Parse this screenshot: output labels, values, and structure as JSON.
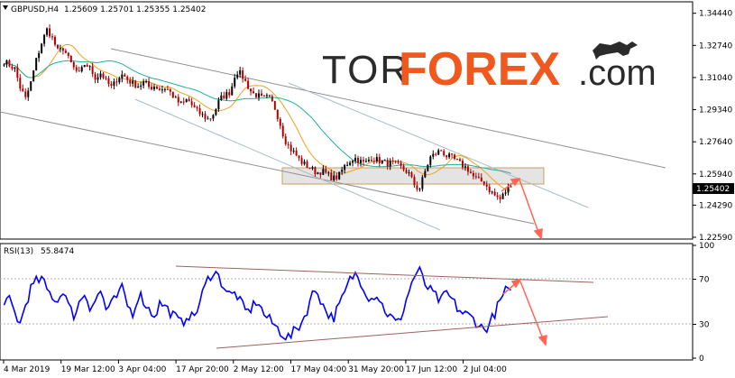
{
  "main_header": {
    "symbol": "GBPUSD,H4",
    "ohlc": "1.25609 1.25701 1.25355 1.25402"
  },
  "watermark": {
    "part1": "TOR",
    "part2": "FOREX",
    "part3": ".com",
    "logo_icon": "bull-icon",
    "colors": {
      "dark": "#2b2b2b",
      "orange": "#f0581e"
    }
  },
  "price_axis": {
    "ticks": [
      "1.34440",
      "1.32740",
      "1.31040",
      "1.29340",
      "1.27640",
      "1.25940",
      "1.24290",
      "1.22590"
    ],
    "current_price_tag": "1.25402"
  },
  "rsi_header": {
    "name": "RSI(13)",
    "value": "55.8474"
  },
  "rsi_axis": {
    "ticks": [
      "100",
      "70",
      "30",
      "0"
    ]
  },
  "time_axis": {
    "labels": [
      "4 Mar 2019",
      "19 Mar 12:00",
      "3 Apr 04:00",
      "17 Apr 20:00",
      "2 May 12:00",
      "17 May 04:00",
      "31 May 20:00",
      "17 Jun 12:00",
      "2 Jul 04:00"
    ]
  },
  "colors": {
    "bull_candle": "#000000",
    "bear_candle": "#b50000",
    "ma_fast": "#f0a020",
    "ma_slow": "#20b0a0",
    "rsi_line": "#0000ff",
    "trend_lines": "#808080",
    "support_zone": "#d8d8d8",
    "forecast_arrow": "#ff6655",
    "rsi_trend_lines": "#a06060"
  },
  "chart_data": {
    "type": "candlestick",
    "symbol": "GBPUSD",
    "timeframe": "H4",
    "ylim": [
      1.2259,
      1.3495
    ],
    "rsi_ylim": [
      0,
      100
    ],
    "rsi_levels": [
      70,
      30
    ],
    "close_path": [
      1.319,
      1.317,
      1.315,
      1.305,
      1.299,
      1.308,
      1.32,
      1.329,
      1.336,
      1.331,
      1.324,
      1.326,
      1.32,
      1.315,
      1.312,
      1.318,
      1.315,
      1.31,
      1.313,
      1.308,
      1.305,
      1.31,
      1.312,
      1.309,
      1.307,
      1.306,
      1.308,
      1.305,
      1.306,
      1.304,
      1.305,
      1.302,
      1.298,
      1.296,
      1.299,
      1.295,
      1.292,
      1.29,
      1.288,
      1.292,
      1.299,
      1.301,
      1.303,
      1.314,
      1.312,
      1.307,
      1.302,
      1.301,
      1.299,
      1.3,
      1.296,
      1.288,
      1.278,
      1.273,
      1.27,
      1.266,
      1.264,
      1.262,
      1.26,
      1.261,
      1.259,
      1.257,
      1.258,
      1.263,
      1.266,
      1.268,
      1.266,
      1.265,
      1.268,
      1.267,
      1.266,
      1.265,
      1.265,
      1.264,
      1.262,
      1.26,
      1.254,
      1.251,
      1.26,
      1.268,
      1.27,
      1.272,
      1.269,
      1.268,
      1.266,
      1.264,
      1.262,
      1.258,
      1.256,
      1.255,
      1.251,
      1.248,
      1.246,
      1.25,
      1.254
    ],
    "rsi_path": [
      45,
      52,
      40,
      30,
      48,
      62,
      68,
      70,
      60,
      55,
      50,
      62,
      45,
      38,
      50,
      58,
      45,
      52,
      60,
      42,
      48,
      55,
      62,
      45,
      40,
      58,
      50,
      42,
      38,
      50,
      45,
      40,
      35,
      30,
      40,
      35,
      45,
      60,
      72,
      78,
      70,
      62,
      55,
      58,
      48,
      40,
      45,
      52,
      40,
      35,
      30,
      25,
      20,
      18,
      25,
      30,
      40,
      55,
      62,
      48,
      40,
      35,
      45,
      55,
      68,
      75,
      70,
      60,
      52,
      58,
      48,
      40,
      35,
      30,
      42,
      58,
      72,
      78,
      66,
      60,
      55,
      50,
      58,
      52,
      45,
      40,
      38,
      35,
      30,
      25,
      30,
      40,
      50,
      60,
      56
    ]
  }
}
